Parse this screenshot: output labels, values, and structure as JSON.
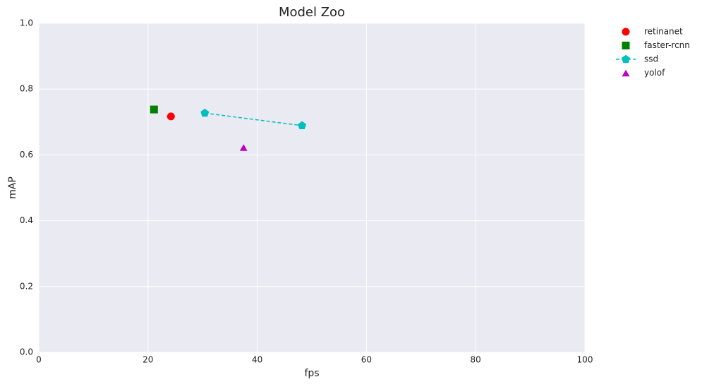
{
  "chart_data": {
    "type": "scatter",
    "title": "Model Zoo",
    "x_label": "fps",
    "y_label": "mAP",
    "xlim": [
      0,
      100
    ],
    "xticks": [
      0,
      20,
      40,
      60,
      80,
      100
    ],
    "ylim": [
      0,
      1
    ],
    "yticks": [
      {
        "value": 0,
        "label": "0.0"
      },
      0.2,
      0.4,
      0.6,
      0.8,
      {
        "value": 1,
        "label": "1.0"
      }
    ],
    "grid": true,
    "legend": "outside-right",
    "series": [
      {
        "name": "retinanet",
        "color": "#ff0000",
        "marker": "circle",
        "linestyle": "none",
        "x": [
          24.2
        ],
        "values": [
          0.717
        ]
      },
      {
        "name": "faster-rcnn",
        "color": "#008000",
        "marker": "square",
        "linestyle": "none",
        "x": [
          21.1
        ],
        "values": [
          0.738
        ]
      },
      {
        "name": "ssd",
        "color": "#00bfbf",
        "marker": "pentagon",
        "linestyle": "dashed",
        "x": [
          30.4,
          48.2
        ],
        "values": [
          0.727,
          0.689
        ]
      },
      {
        "name": "yolof",
        "color": "#bf00bf",
        "marker": "triangle",
        "linestyle": "none",
        "x": [
          37.5
        ],
        "values": [
          0.622
        ]
      }
    ]
  }
}
